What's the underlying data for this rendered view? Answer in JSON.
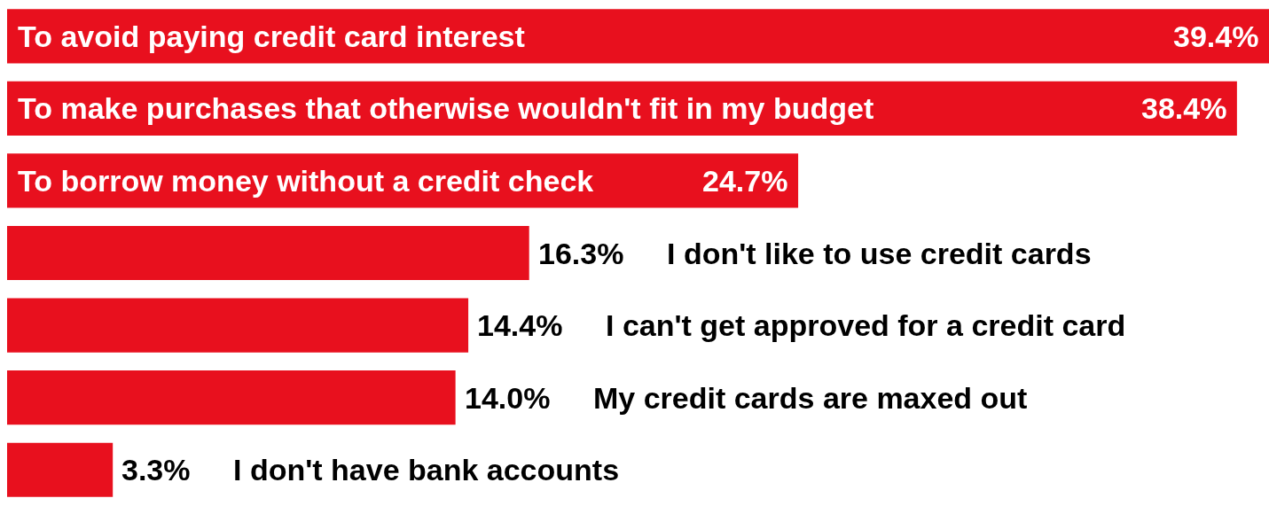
{
  "chart_data": {
    "type": "bar",
    "orientation": "horizontal",
    "categories": [
      "To avoid paying credit card interest",
      "To make purchases that otherwise wouldn't fit in my budget",
      "To borrow money without a credit check",
      "I don't like to use credit cards",
      "I can't get approved for a credit card",
      "My credit cards are maxed out",
      "I don't have bank accounts"
    ],
    "values": [
      39.4,
      38.4,
      24.7,
      16.3,
      14.4,
      14.0,
      3.3
    ],
    "value_labels": [
      "39.4%",
      "38.4%",
      "24.7%",
      "16.3%",
      "14.4%",
      "14.0%",
      "3.3%"
    ],
    "color": "#e8101e",
    "grid": false,
    "legend": false
  }
}
